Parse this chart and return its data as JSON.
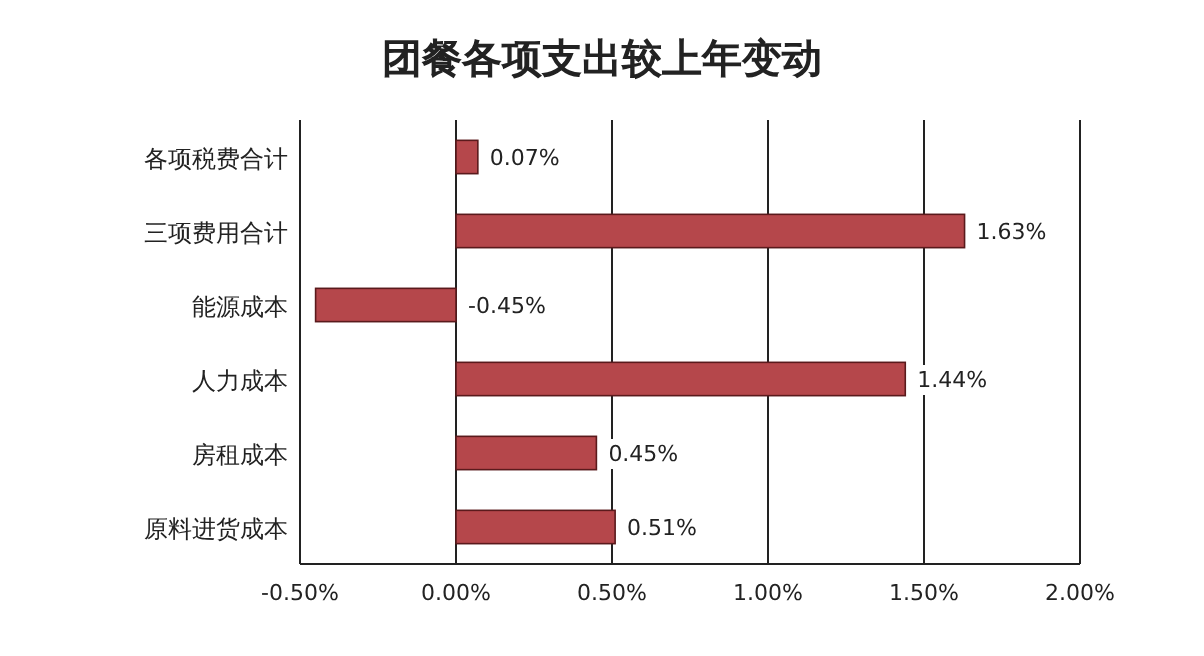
{
  "chart_data": {
    "type": "bar",
    "orientation": "horizontal",
    "title": "团餐各项支出较上年变动",
    "categories": [
      "各项税费合计",
      "三项费用合计",
      "能源成本",
      "人力成本",
      "房租成本",
      "原料进货成本"
    ],
    "values": [
      0.07,
      1.63,
      -0.45,
      1.44,
      0.45,
      0.51
    ],
    "value_labels": [
      "0.07%",
      "1.63%",
      "-0.45%",
      "1.44%",
      "0.45%",
      "0.51%"
    ],
    "color": "#b5474b",
    "xlim": [
      -0.5,
      2.0
    ],
    "xticks": [
      {
        "value": -0.5,
        "label": "-0.50%"
      },
      {
        "value": 0,
        "label": "0.00%"
      },
      {
        "value": 0.5,
        "label": "0.50%"
      },
      {
        "value": 1.0,
        "label": "1.00%"
      },
      {
        "value": 1.5,
        "label": "1.50%"
      },
      {
        "value": 2.0,
        "label": "2.00%"
      }
    ],
    "grid": "x"
  }
}
